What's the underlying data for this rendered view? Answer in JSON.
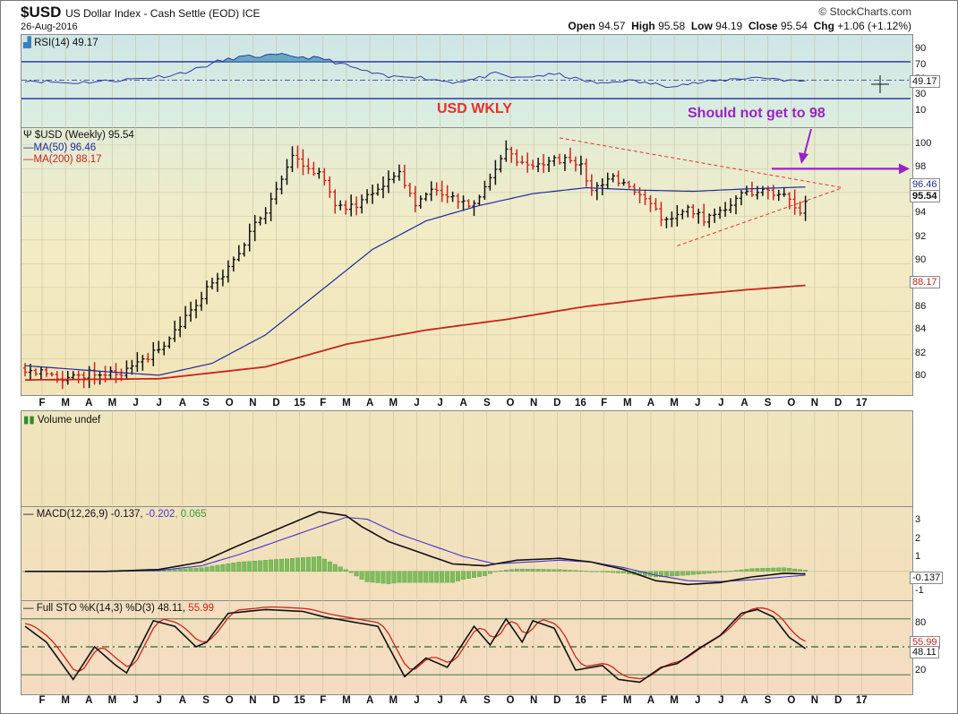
{
  "header": {
    "ticker": "$USD",
    "name": "US Dollar Index - Cash Settle (EOD) ICE",
    "date": "26-Aug-2016",
    "watermark": "© StockCharts.com",
    "open_label": "Open",
    "open": "94.57",
    "high_label": "High",
    "high": "95.58",
    "low_label": "Low",
    "low": "94.19",
    "close_label": "Close",
    "close": "95.54",
    "chg_label": "Chg",
    "chg": "+1.06 (+1.12%)"
  },
  "annotations": {
    "title": "USD WKLY",
    "note": "Should not get to 98",
    "title_color": "#e8302a",
    "note_color": "#9b22c7"
  },
  "rsi": {
    "label": "RSI(14) 49.17",
    "ticks": [
      "90",
      "70",
      "50",
      "30",
      "10"
    ],
    "tag": "49.17"
  },
  "price": {
    "label": "$USD (Weekly) 95.54",
    "ma50_label": "MA(50) 96.46",
    "ma200_label": "MA(200) 88.17",
    "ticks": [
      "100",
      "98",
      "96",
      "94",
      "92",
      "90",
      "88",
      "86",
      "84",
      "82",
      "80"
    ],
    "tag_ma50": "96.46",
    "tag_close": "95.54",
    "tag_ma200": "88.17"
  },
  "volume": {
    "label": "Volume undef"
  },
  "macd": {
    "label_a": "MACD(12,26,9) -0.137, ",
    "label_b": "-0.202",
    "label_c": ", 0.065",
    "ticks": [
      "3",
      "2",
      "1",
      "0",
      "-1"
    ],
    "tag": "-0.137"
  },
  "sto": {
    "label_a": "Full STO %K(14,3) %D(3) 48.11, ",
    "label_b": "55.99",
    "ticks": [
      "80",
      "50",
      "20"
    ],
    "tag_d": "55.99",
    "tag_k": "48.11"
  },
  "months": [
    "F",
    "M",
    "A",
    "M",
    "J",
    "J",
    "A",
    "S",
    "O",
    "N",
    "D",
    "15",
    "F",
    "M",
    "A",
    "M",
    "J",
    "J",
    "A",
    "S",
    "O",
    "N",
    "D",
    "16",
    "F",
    "M",
    "A",
    "M",
    "J",
    "J",
    "A",
    "S",
    "O",
    "N",
    "D",
    "17"
  ],
  "chart_data": [
    {
      "type": "line",
      "title": "RSI(14)",
      "ylim": [
        0,
        100
      ],
      "reference_lines": [
        70,
        50,
        30
      ],
      "series": [
        {
          "name": "RSI(14)",
          "last": 49.17
        }
      ]
    },
    {
      "type": "line",
      "title": "$USD (Weekly)",
      "ylim": [
        79,
        101.5
      ],
      "series": [
        {
          "name": "$USD (Weekly)",
          "last": 95.54,
          "anchors": [
            [
              0,
              81.2
            ],
            [
              5,
              80.6
            ],
            [
              9,
              80.3
            ],
            [
              13,
              80.9
            ],
            [
              17,
              80.7
            ],
            [
              21,
              81.4
            ],
            [
              26,
              83.2
            ],
            [
              30,
              85.5
            ],
            [
              34,
              87.8
            ],
            [
              38,
              89.5
            ],
            [
              42,
              92.5
            ],
            [
              45,
              94.5
            ],
            [
              48,
              96.8
            ],
            [
              50,
              99.2
            ],
            [
              52,
              98.3
            ],
            [
              55,
              97.6
            ],
            [
              58,
              95.1
            ],
            [
              61,
              94.8
            ],
            [
              64,
              95.6
            ],
            [
              67,
              96.8
            ],
            [
              70,
              97.6
            ],
            [
              73,
              95.2
            ],
            [
              76,
              96.2
            ],
            [
              80,
              95.6
            ],
            [
              83,
              94.6
            ],
            [
              86,
              96.4
            ],
            [
              88,
              98.1
            ],
            [
              90,
              99.4
            ],
            [
              93,
              98.3
            ],
            [
              96,
              98.2
            ],
            [
              100,
              98.8
            ],
            [
              104,
              98.3
            ],
            [
              106,
              96.2
            ],
            [
              110,
              97.2
            ],
            [
              114,
              96.0
            ],
            [
              118,
              94.3
            ],
            [
              121,
              93.5
            ],
            [
              124,
              94.8
            ],
            [
              127,
              93.8
            ],
            [
              130,
              94.6
            ],
            [
              133,
              95.4
            ],
            [
              136,
              96.1
            ],
            [
              139,
              96.2
            ],
            [
              142,
              95.6
            ],
            [
              145,
              94.6
            ],
            [
              146,
              95.5
            ]
          ]
        },
        {
          "name": "MA(50)",
          "last": 96.46,
          "anchors": [
            [
              0,
              81.4
            ],
            [
              15,
              80.9
            ],
            [
              25,
              80.6
            ],
            [
              35,
              81.6
            ],
            [
              45,
              84.0
            ],
            [
              55,
              87.6
            ],
            [
              65,
              91.2
            ],
            [
              75,
              93.6
            ],
            [
              85,
              94.9
            ],
            [
              95,
              95.9
            ],
            [
              105,
              96.4
            ],
            [
              115,
              96.2
            ],
            [
              125,
              96.1
            ],
            [
              135,
              96.3
            ],
            [
              146,
              96.46
            ]
          ]
        },
        {
          "name": "MA(200)",
          "last": 88.17,
          "anchors": [
            [
              0,
              80.2
            ],
            [
              25,
              80.3
            ],
            [
              45,
              81.3
            ],
            [
              60,
              83.2
            ],
            [
              75,
              84.4
            ],
            [
              90,
              85.3
            ],
            [
              105,
              86.4
            ],
            [
              120,
              87.2
            ],
            [
              135,
              87.8
            ],
            [
              146,
              88.17
            ]
          ]
        }
      ],
      "trendlines": [
        {
          "from": [
            100,
            100.6
          ],
          "to": [
            153,
            96.4
          ]
        },
        {
          "from": [
            122,
            91.5
          ],
          "to": [
            153,
            96.4
          ]
        }
      ],
      "resistance": 98
    },
    {
      "type": "line",
      "title": "MACD(12,26,9)",
      "ylim": [
        -1.5,
        3.5
      ],
      "series": [
        {
          "name": "MACD",
          "last": -0.137
        },
        {
          "name": "Signal",
          "last": -0.202
        },
        {
          "name": "Histogram",
          "last": 0.065
        }
      ]
    },
    {
      "type": "line",
      "title": "Full STO %K(14,3) %D(3)",
      "ylim": [
        0,
        100
      ],
      "reference_lines": [
        80,
        50,
        20
      ],
      "series": [
        {
          "name": "%K",
          "last": 48.11
        },
        {
          "name": "%D",
          "last": 55.99
        }
      ]
    }
  ]
}
